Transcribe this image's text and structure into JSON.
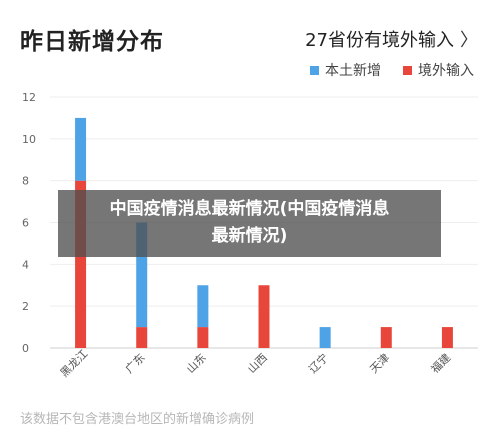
{
  "title": "昨日新增分布",
  "link": {
    "label": "27省份有境外输入",
    "chevron": "〉"
  },
  "legend": [
    {
      "name": "本土新增",
      "color": "#4da3e6"
    },
    {
      "name": "境外输入",
      "color": "#e8463a"
    }
  ],
  "chart_data": {
    "type": "bar",
    "stacked": true,
    "categories": [
      "黑龙江",
      "广东",
      "山东",
      "山西",
      "辽宁",
      "天津",
      "福建"
    ],
    "series": [
      {
        "name": "境外输入",
        "color": "#e8463a",
        "values": [
          8,
          1,
          1,
          3,
          0,
          1,
          1
        ]
      },
      {
        "name": "本土新增",
        "color": "#4da3e6",
        "values": [
          3,
          5,
          2,
          0,
          1,
          0,
          0
        ]
      }
    ],
    "ylim": [
      0,
      12
    ],
    "yticks": [
      0,
      2,
      4,
      6,
      8,
      10,
      12
    ],
    "grid": true,
    "legend_position": "top-right"
  },
  "footnote": "该数据不包含港澳台地区的新增确诊病例",
  "overlay": {
    "line1": "中国疫情消息最新情况(中国疫情消息",
    "line2": "最新情况)"
  }
}
